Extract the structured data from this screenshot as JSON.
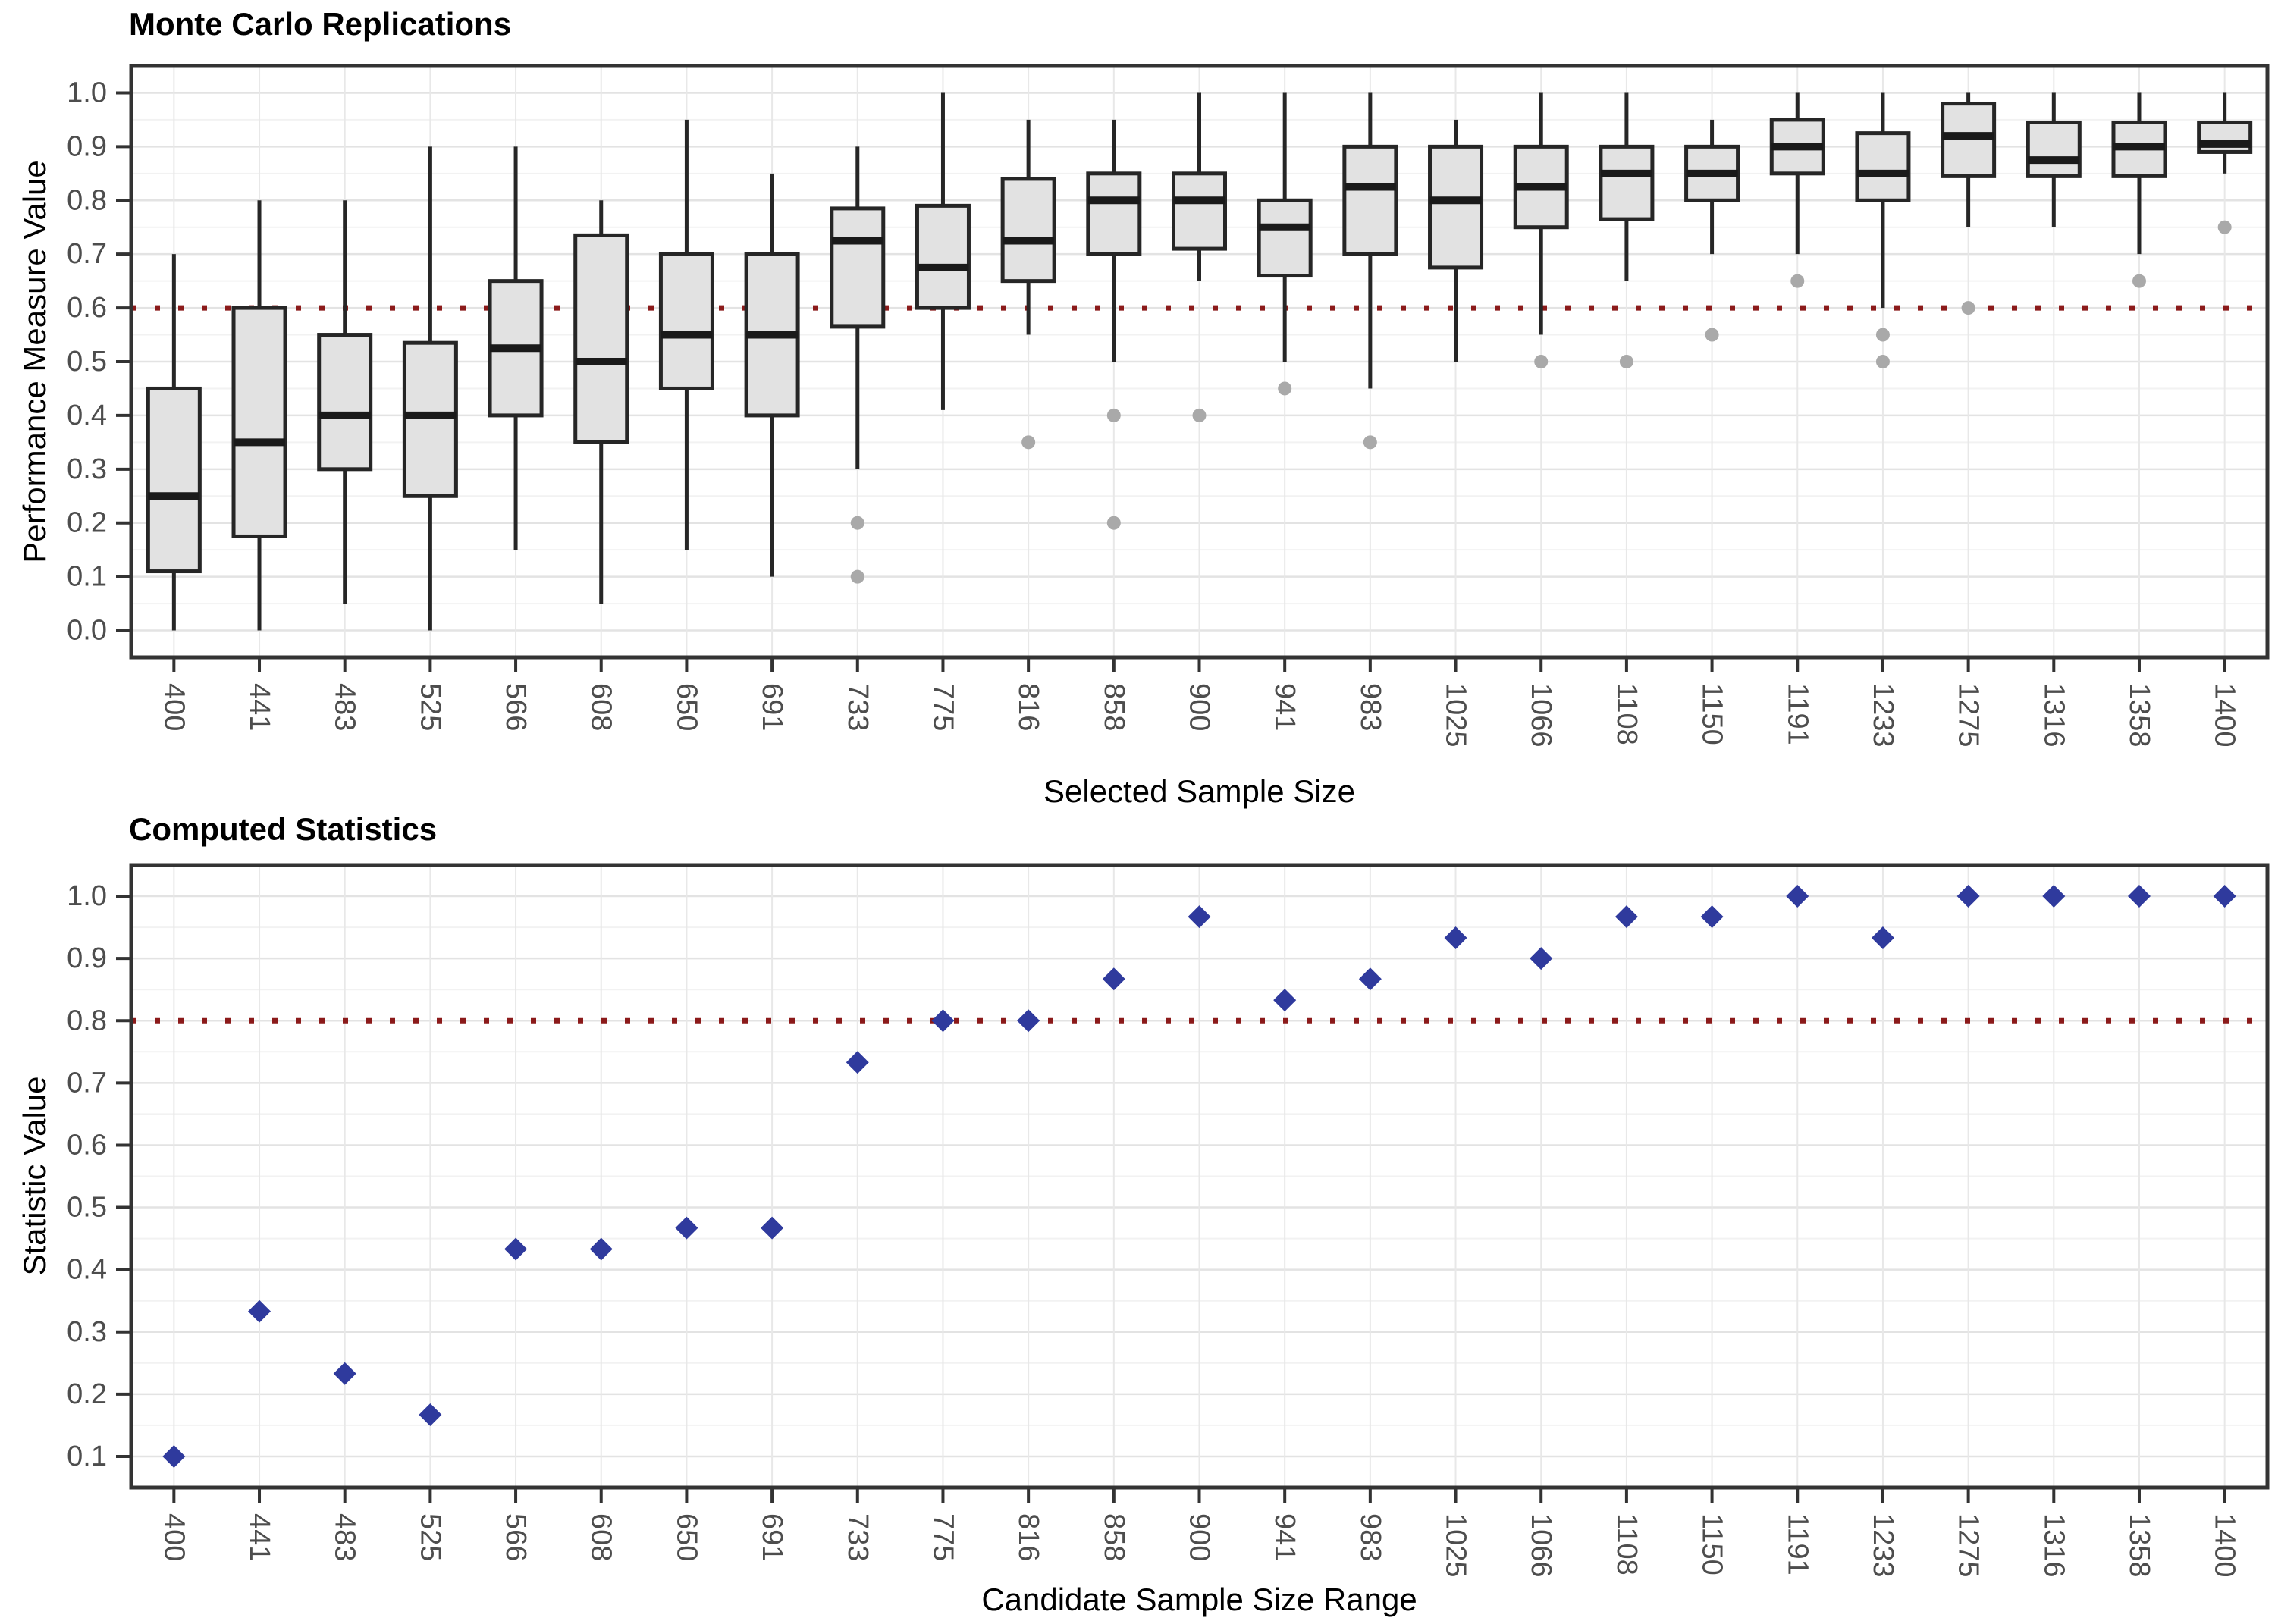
{
  "chart_data": [
    {
      "type": "boxplot",
      "title": "Monte Carlo Replications",
      "xlabel": "Selected Sample Size",
      "ylabel": "Performance Measure Value",
      "categories": [
        "400",
        "441",
        "483",
        "525",
        "566",
        "608",
        "650",
        "691",
        "733",
        "775",
        "816",
        "858",
        "900",
        "941",
        "983",
        "1025",
        "1066",
        "1108",
        "1150",
        "1191",
        "1233",
        "1275",
        "1316",
        "1358",
        "1400"
      ],
      "y_ticks": [
        "0.0",
        "0.1",
        "0.2",
        "0.3",
        "0.4",
        "0.5",
        "0.6",
        "0.7",
        "0.8",
        "0.9",
        "1.0"
      ],
      "ylim": [
        -0.05,
        1.05
      ],
      "grid": "major-and-minor",
      "legend": "none",
      "x_tick_angle": 90,
      "ref_line": {
        "y": 0.6,
        "color": "#8B1A1A",
        "style": "dotted"
      },
      "boxes": [
        {
          "x": "400",
          "whisker_low": 0.0,
          "q1": 0.11,
          "median": 0.25,
          "q3": 0.45,
          "whisker_high": 0.7,
          "outliers": []
        },
        {
          "x": "441",
          "whisker_low": 0.0,
          "q1": 0.175,
          "median": 0.35,
          "q3": 0.6,
          "whisker_high": 0.8,
          "outliers": []
        },
        {
          "x": "483",
          "whisker_low": 0.05,
          "q1": 0.3,
          "median": 0.4,
          "q3": 0.55,
          "whisker_high": 0.8,
          "outliers": []
        },
        {
          "x": "525",
          "whisker_low": 0.0,
          "q1": 0.25,
          "median": 0.4,
          "q3": 0.535,
          "whisker_high": 0.9,
          "outliers": []
        },
        {
          "x": "566",
          "whisker_low": 0.15,
          "q1": 0.4,
          "median": 0.525,
          "q3": 0.65,
          "whisker_high": 0.9,
          "outliers": []
        },
        {
          "x": "608",
          "whisker_low": 0.05,
          "q1": 0.35,
          "median": 0.5,
          "q3": 0.735,
          "whisker_high": 0.8,
          "outliers": []
        },
        {
          "x": "650",
          "whisker_low": 0.15,
          "q1": 0.45,
          "median": 0.55,
          "q3": 0.7,
          "whisker_high": 0.95,
          "outliers": []
        },
        {
          "x": "691",
          "whisker_low": 0.1,
          "q1": 0.4,
          "median": 0.55,
          "q3": 0.7,
          "whisker_high": 0.85,
          "outliers": []
        },
        {
          "x": "733",
          "whisker_low": 0.3,
          "q1": 0.565,
          "median": 0.725,
          "q3": 0.785,
          "whisker_high": 0.9,
          "outliers": [
            0.2,
            0.1
          ]
        },
        {
          "x": "775",
          "whisker_low": 0.41,
          "q1": 0.6,
          "median": 0.675,
          "q3": 0.79,
          "whisker_high": 1.0,
          "outliers": []
        },
        {
          "x": "816",
          "whisker_low": 0.55,
          "q1": 0.65,
          "median": 0.725,
          "q3": 0.84,
          "whisker_high": 0.95,
          "outliers": [
            0.35
          ]
        },
        {
          "x": "858",
          "whisker_low": 0.5,
          "q1": 0.7,
          "median": 0.8,
          "q3": 0.85,
          "whisker_high": 0.95,
          "outliers": [
            0.4,
            0.2
          ]
        },
        {
          "x": "900",
          "whisker_low": 0.65,
          "q1": 0.71,
          "median": 0.8,
          "q3": 0.85,
          "whisker_high": 1.0,
          "outliers": [
            0.4
          ]
        },
        {
          "x": "941",
          "whisker_low": 0.5,
          "q1": 0.66,
          "median": 0.75,
          "q3": 0.8,
          "whisker_high": 1.0,
          "outliers": [
            0.45
          ]
        },
        {
          "x": "983",
          "whisker_low": 0.45,
          "q1": 0.7,
          "median": 0.825,
          "q3": 0.9,
          "whisker_high": 1.0,
          "outliers": [
            0.35
          ]
        },
        {
          "x": "1025",
          "whisker_low": 0.5,
          "q1": 0.675,
          "median": 0.8,
          "q3": 0.9,
          "whisker_high": 0.95,
          "outliers": []
        },
        {
          "x": "1066",
          "whisker_low": 0.55,
          "q1": 0.75,
          "median": 0.825,
          "q3": 0.9,
          "whisker_high": 1.0,
          "outliers": [
            0.5
          ]
        },
        {
          "x": "1108",
          "whisker_low": 0.65,
          "q1": 0.765,
          "median": 0.85,
          "q3": 0.9,
          "whisker_high": 1.0,
          "outliers": [
            0.5
          ]
        },
        {
          "x": "1150",
          "whisker_low": 0.7,
          "q1": 0.8,
          "median": 0.85,
          "q3": 0.9,
          "whisker_high": 0.95,
          "outliers": [
            0.55
          ]
        },
        {
          "x": "1191",
          "whisker_low": 0.7,
          "q1": 0.85,
          "median": 0.9,
          "q3": 0.95,
          "whisker_high": 1.0,
          "outliers": [
            0.65
          ]
        },
        {
          "x": "1233",
          "whisker_low": 0.6,
          "q1": 0.8,
          "median": 0.85,
          "q3": 0.925,
          "whisker_high": 1.0,
          "outliers": [
            0.55,
            0.5
          ]
        },
        {
          "x": "1275",
          "whisker_low": 0.75,
          "q1": 0.845,
          "median": 0.92,
          "q3": 0.98,
          "whisker_high": 1.0,
          "outliers": [
            0.6
          ]
        },
        {
          "x": "1316",
          "whisker_low": 0.75,
          "q1": 0.845,
          "median": 0.875,
          "q3": 0.945,
          "whisker_high": 1.0,
          "outliers": []
        },
        {
          "x": "1358",
          "whisker_low": 0.7,
          "q1": 0.845,
          "median": 0.9,
          "q3": 0.945,
          "whisker_high": 1.0,
          "outliers": [
            0.65
          ]
        },
        {
          "x": "1400",
          "whisker_low": 0.85,
          "q1": 0.89,
          "median": 0.905,
          "q3": 0.945,
          "whisker_high": 1.0,
          "outliers": [
            0.75
          ]
        }
      ]
    },
    {
      "type": "scatter",
      "title": "Computed Statistics",
      "xlabel": "Candidate Sample Size Range",
      "ylabel": "Statistic Value",
      "categories": [
        "400",
        "441",
        "483",
        "525",
        "566",
        "608",
        "650",
        "691",
        "733",
        "775",
        "816",
        "858",
        "900",
        "941",
        "983",
        "1025",
        "1066",
        "1108",
        "1150",
        "1191",
        "1233",
        "1275",
        "1316",
        "1358",
        "1400"
      ],
      "y_ticks": [
        "0.1",
        "0.2",
        "0.3",
        "0.4",
        "0.5",
        "0.6",
        "0.7",
        "0.8",
        "0.9",
        "1.0"
      ],
      "ylim": [
        0.05,
        1.05
      ],
      "grid": "major-and-minor",
      "legend": "none",
      "x_tick_angle": 90,
      "marker": "diamond",
      "ref_line": {
        "y": 0.8,
        "color": "#8B1A1A",
        "style": "dotted"
      },
      "values": [
        0.1,
        0.333,
        0.233,
        0.167,
        0.433,
        0.433,
        0.467,
        0.467,
        0.733,
        0.8,
        0.8,
        0.867,
        0.967,
        0.833,
        0.867,
        0.933,
        0.9,
        0.967,
        0.967,
        1.0,
        0.933,
        1.0,
        1.0,
        1.0,
        1.0
      ]
    }
  ],
  "style": {
    "background": "#FFFFFF",
    "box_fill": "#E2E2E2",
    "box_stroke": "#262626",
    "median_color": "#1A1A1A",
    "outlier_color": "#A9A9A9",
    "marker_color": "#2F3A9D",
    "ref_line_color": "#8B1A1A",
    "grid_major": "#E3E3E3",
    "grid_minor": "#F2F2F2",
    "grid_vertical": "#E8E8E8",
    "panel_border": "#333333",
    "tick_color": "#333333",
    "tick_label_color": "#4D4D4D"
  }
}
